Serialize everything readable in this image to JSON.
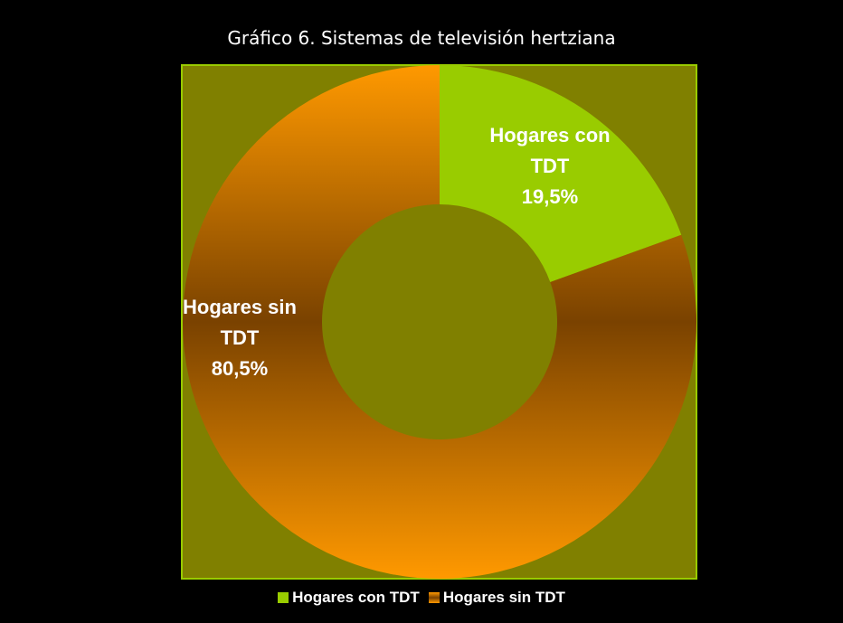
{
  "chart_data": {
    "type": "donut",
    "title": "Gráfico 6. Sistemas de televisión hertziana",
    "categories": [
      "Hogares con TDT",
      "Hogares sin TDT"
    ],
    "values": [
      19.5,
      80.5
    ],
    "value_labels": [
      "19,5%",
      "80,5%"
    ],
    "colors": [
      "#99cc00",
      "#ff9900"
    ],
    "legend": "bottom"
  }
}
